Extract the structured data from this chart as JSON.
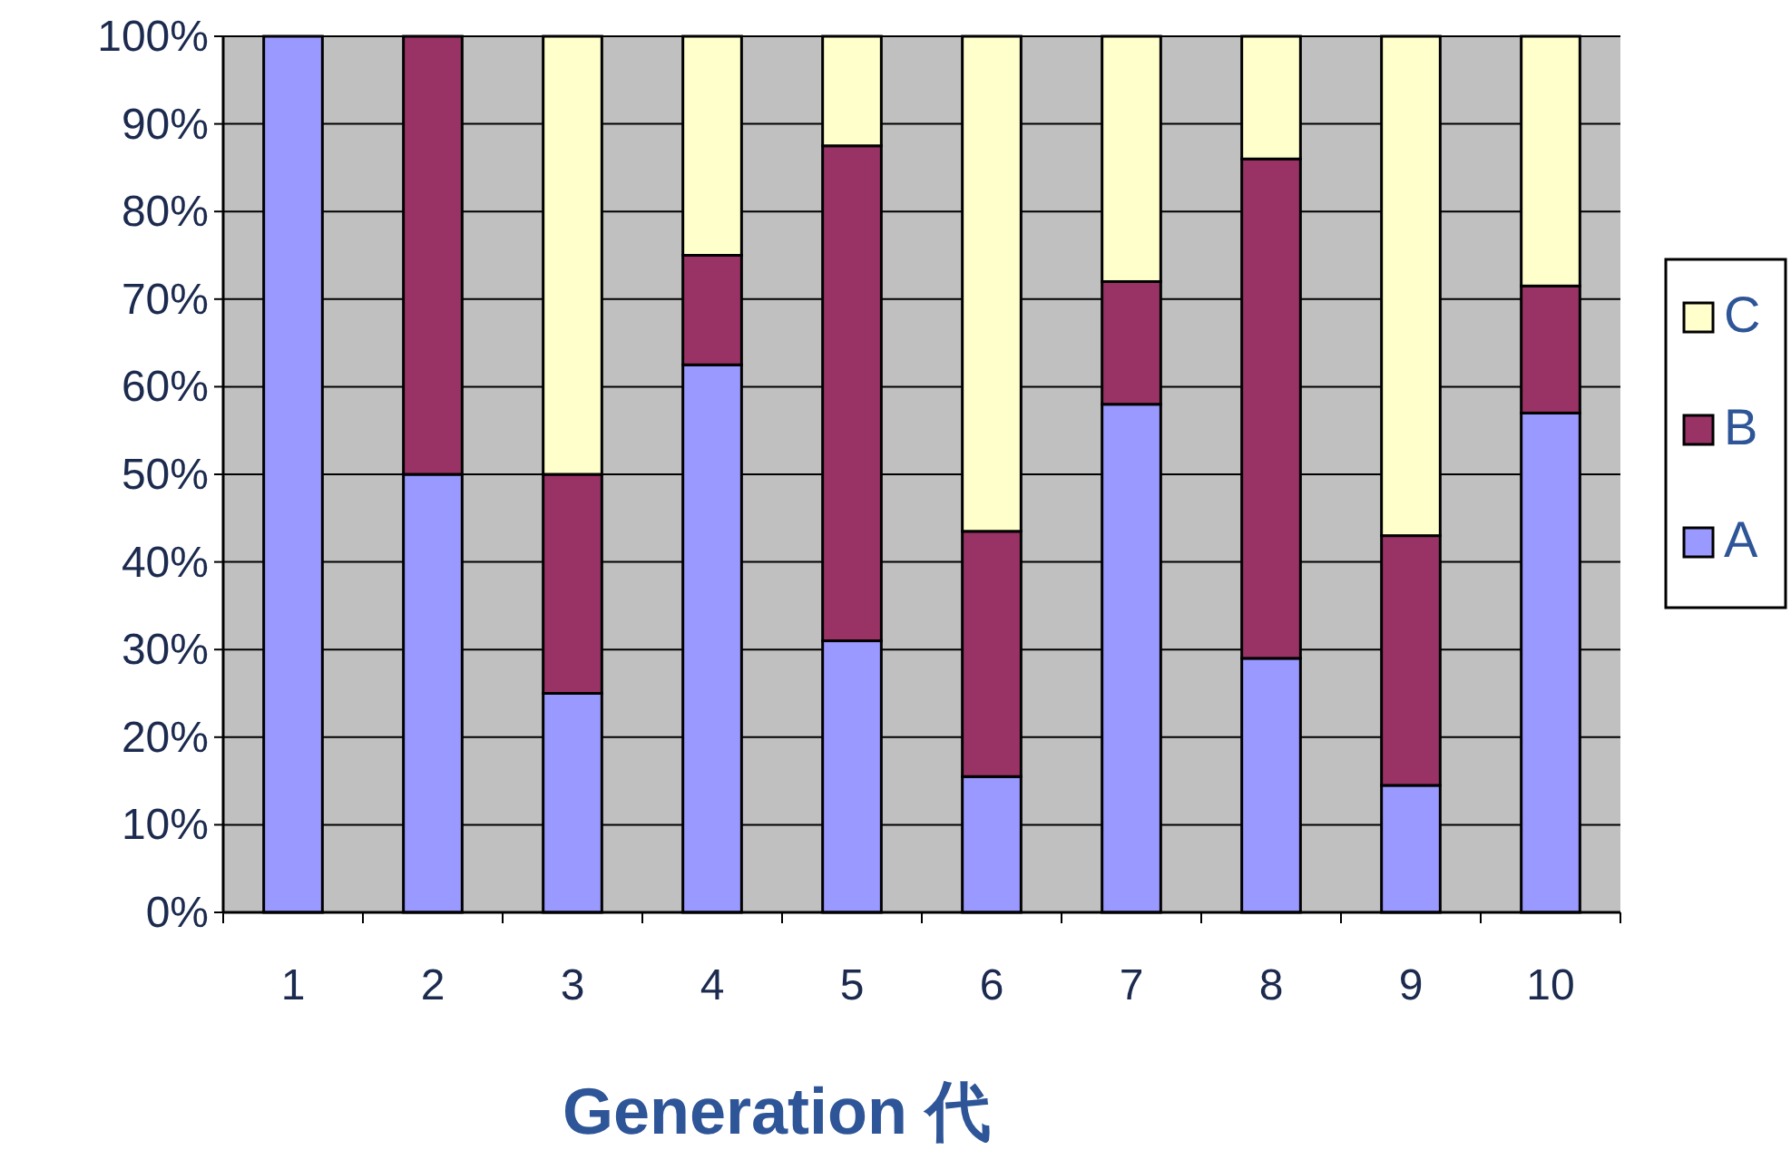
{
  "chart_data": {
    "type": "bar",
    "stacked": true,
    "xlabel": "Generation  代",
    "categories": [
      "1",
      "2",
      "3",
      "4",
      "5",
      "6",
      "7",
      "8",
      "9",
      "10"
    ],
    "series": [
      {
        "name": "A",
        "color": "#9999ff",
        "values": [
          100,
          50,
          25,
          62.5,
          31,
          15.5,
          58,
          29,
          14.5,
          57
        ]
      },
      {
        "name": "B",
        "color": "#993366",
        "values": [
          0,
          50,
          25,
          12.5,
          56.5,
          28,
          14,
          57,
          28.5,
          14.5
        ]
      },
      {
        "name": "C",
        "color": "#ffffcc",
        "values": [
          0,
          0,
          50,
          25,
          12.5,
          56.5,
          28,
          14,
          57,
          28.5
        ]
      }
    ],
    "ylim": [
      0,
      100
    ],
    "yticks": [
      {
        "value": 0,
        "label": "0%"
      },
      {
        "value": 10,
        "label": "10%"
      },
      {
        "value": 20,
        "label": "20%"
      },
      {
        "value": 30,
        "label": "30%"
      },
      {
        "value": 40,
        "label": "40%"
      },
      {
        "value": 50,
        "label": "50%"
      },
      {
        "value": 60,
        "label": "60%"
      },
      {
        "value": 70,
        "label": "70%"
      },
      {
        "value": 80,
        "label": "80%"
      },
      {
        "value": 90,
        "label": "90%"
      },
      {
        "value": 100,
        "label": "100%"
      }
    ],
    "grid": "y",
    "legend": "right"
  }
}
